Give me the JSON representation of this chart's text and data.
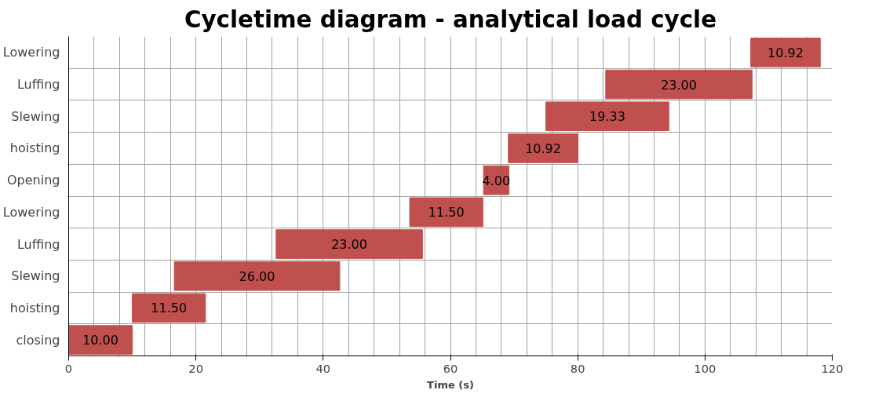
{
  "chart_data": {
    "type": "bar",
    "orientation": "horizontal",
    "title": "Cycletime diagram - analytical load cycle",
    "xlabel": "Time (s)",
    "categories": [
      "Lowering",
      "Luffing",
      "Slewing",
      "hoisting",
      "Opening",
      "Lowering",
      "Luffing",
      "Slewing",
      "hoisting",
      "closing"
    ],
    "values": [
      10.92,
      23.0,
      19.33,
      10.92,
      4.0,
      11.5,
      23.0,
      26.0,
      11.5,
      10.0
    ],
    "base": [
      107.2,
      84.4,
      75.0,
      69.1,
      65.2,
      53.6,
      32.6,
      16.6,
      10.0,
      0
    ],
    "value_labels": [
      "10.92",
      "23.00",
      "19.33",
      "10.92",
      "4.00",
      "11.50",
      "23.00",
      "26.00",
      "11.50",
      "10.00"
    ],
    "color": "#c0504d",
    "xlim": [
      0,
      120
    ],
    "xticks": [
      0,
      {
        "value": 4,
        "label": null
      },
      {
        "value": 8,
        "label": null
      },
      {
        "value": 12,
        "label": null
      },
      {
        "value": 16,
        "label": null
      },
      20,
      {
        "value": 24,
        "label": null
      },
      {
        "value": 28,
        "label": null
      },
      {
        "value": 32,
        "label": null
      },
      {
        "value": 36,
        "label": null
      },
      40,
      {
        "value": 44,
        "label": null
      },
      {
        "value": 48,
        "label": null
      },
      {
        "value": 52,
        "label": null
      },
      {
        "value": 56,
        "label": null
      },
      60,
      {
        "value": 64,
        "label": null
      },
      {
        "value": 68,
        "label": null
      },
      {
        "value": 72,
        "label": null
      },
      {
        "value": 76,
        "label": null
      },
      80,
      {
        "value": 84,
        "label": null
      },
      {
        "value": 88,
        "label": null
      },
      {
        "value": 92,
        "label": null
      },
      {
        "value": 96,
        "label": null
      },
      100,
      {
        "value": 104,
        "label": null
      },
      {
        "value": 108,
        "label": null
      },
      {
        "value": 112,
        "label": null
      },
      {
        "value": 116,
        "label": null
      },
      120
    ],
    "grid": true
  }
}
